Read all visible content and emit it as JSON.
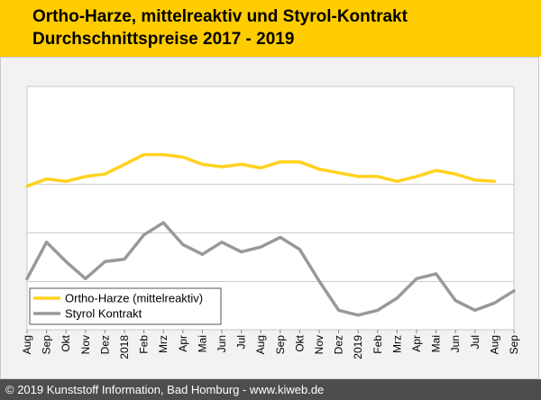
{
  "header": {
    "title_line1": "Ortho-Harze, mittelreaktiv und Styrol-Kontrakt",
    "title_line2": "Durchschnittspreise 2017 - 2019"
  },
  "footer": {
    "text": "© 2019 Kunststoff Information, Bad Homburg - www.kiweb.de"
  },
  "colors": {
    "header_bg": "#ffcc00",
    "ortho": "#ffd21e",
    "styrol": "#999999",
    "footer_bg": "#4d4d4d"
  },
  "chart_data": {
    "type": "line",
    "title": "Ortho-Harze, mittelreaktiv und Styrol-Kontrakt Durchschnittspreise 2017 - 2019",
    "xlabel": "",
    "ylabel": "",
    "ylim": [
      0,
      100
    ],
    "y_unit_note": "no y-axis labels shown; values are relative positions 0 (bottom) to 100 (top)",
    "categories": [
      "Aug",
      "Sep",
      "Okt",
      "Nov",
      "Dez",
      "2018",
      "Feb",
      "Mrz",
      "Apr",
      "Mai",
      "Jun",
      "Jul",
      "Aug",
      "Sep",
      "Okt",
      "Nov",
      "Dez",
      "2019",
      "Feb",
      "Mrz",
      "Apr",
      "Mai",
      "Jun",
      "Jul",
      "Aug",
      "Sep"
    ],
    "gridlines_y": [
      20,
      40,
      60
    ],
    "legend": {
      "placement": "bottom-left"
    },
    "series": [
      {
        "name": "Ortho-Harze (mittelreaktiv)",
        "color": "#ffd21e",
        "values": [
          59,
          62,
          61,
          63,
          64,
          68,
          72,
          72,
          71,
          68,
          67,
          68,
          66.5,
          69,
          69,
          66,
          64.5,
          63,
          63,
          61,
          63,
          65.5,
          64,
          61.5,
          61,
          null
        ]
      },
      {
        "name": "Styrol Kontrakt",
        "color": "#999999",
        "values": [
          21,
          36,
          28,
          21,
          28,
          29,
          39,
          44,
          35,
          31,
          36,
          32,
          34,
          38,
          33,
          20,
          8,
          6,
          8,
          13,
          21,
          23,
          12,
          8,
          11,
          16
        ]
      }
    ]
  }
}
